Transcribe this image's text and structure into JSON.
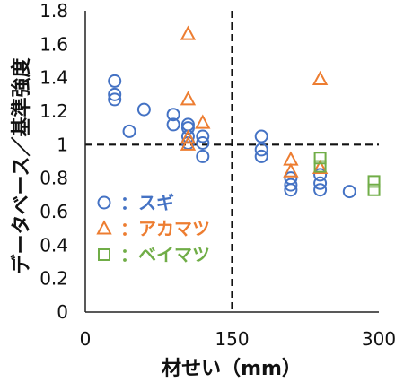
{
  "chart_data": {
    "type": "scatter",
    "xlabel": "材せい（mm）",
    "ylabel": "データベース／基準強度",
    "xlim": [
      0,
      300
    ],
    "ylim": [
      0,
      1.8
    ],
    "x_ticks": [
      "0",
      "150",
      "300"
    ],
    "y_ticks": [
      "0",
      "0.2",
      "0.4",
      "0.6",
      "0.8",
      "1",
      "1.2",
      "1.4",
      "1.6",
      "1.8"
    ],
    "reference_lines": {
      "vertical_x": 150,
      "horizontal_y": 1.0,
      "style": "dashed"
    },
    "legend_position": "left",
    "series": [
      {
        "name": "スギ",
        "marker": "circle",
        "color": "#4472C4",
        "points": [
          [
            30,
            1.38
          ],
          [
            30,
            1.3
          ],
          [
            30,
            1.27
          ],
          [
            45,
            1.08
          ],
          [
            60,
            1.21
          ],
          [
            90,
            1.18
          ],
          [
            90,
            1.12
          ],
          [
            105,
            1.12
          ],
          [
            105,
            1.1
          ],
          [
            105,
            1.05
          ],
          [
            105,
            1.01
          ],
          [
            120,
            1.05
          ],
          [
            120,
            1.01
          ],
          [
            120,
            0.93
          ],
          [
            180,
            1.05
          ],
          [
            180,
            0.97
          ],
          [
            180,
            0.93
          ],
          [
            210,
            0.8
          ],
          [
            210,
            0.76
          ],
          [
            210,
            0.73
          ],
          [
            240,
            0.82
          ],
          [
            240,
            0.77
          ],
          [
            240,
            0.73
          ],
          [
            270,
            0.72
          ]
        ]
      },
      {
        "name": "アカマツ",
        "marker": "triangle",
        "color": "#ED7D31",
        "points": [
          [
            105,
            1.66
          ],
          [
            105,
            1.27
          ],
          [
            105,
            1.04
          ],
          [
            105,
            1.0
          ],
          [
            120,
            1.13
          ],
          [
            210,
            0.91
          ],
          [
            210,
            0.84
          ],
          [
            240,
            1.39
          ],
          [
            240,
            0.86
          ]
        ]
      },
      {
        "name": "ベイマツ",
        "marker": "square",
        "color": "#70AD47",
        "points": [
          [
            240,
            0.92
          ],
          [
            240,
            0.87
          ],
          [
            295,
            0.78
          ],
          [
            295,
            0.73
          ]
        ]
      }
    ]
  }
}
